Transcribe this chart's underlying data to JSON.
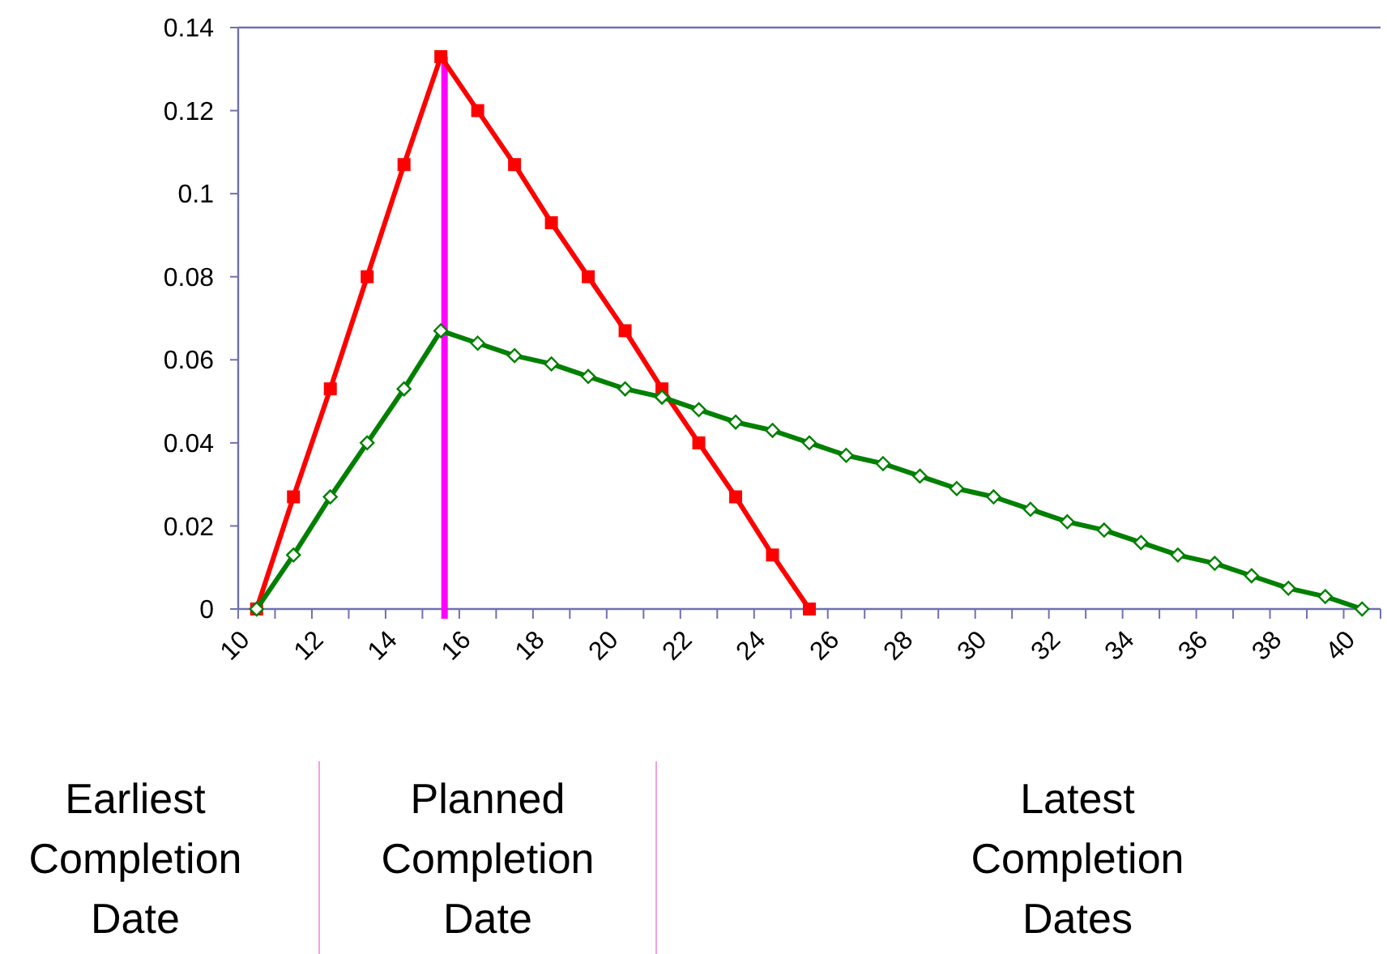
{
  "chart_data": {
    "type": "line",
    "xlim": [
      10,
      41
    ],
    "xticks": [
      10,
      {
        "value": 11,
        "label": null
      },
      12,
      {
        "value": 13,
        "label": null
      },
      14,
      {
        "value": 15,
        "label": null
      },
      16,
      {
        "value": 17,
        "label": null
      },
      18,
      {
        "value": 19,
        "label": null
      },
      20,
      {
        "value": 21,
        "label": null
      },
      22,
      {
        "value": 23,
        "label": null
      },
      24,
      {
        "value": 25,
        "label": null
      },
      26,
      {
        "value": 27,
        "label": null
      },
      28,
      {
        "value": 29,
        "label": null
      },
      30,
      {
        "value": 31,
        "label": null
      },
      32,
      {
        "value": 33,
        "label": null
      },
      34,
      {
        "value": 35,
        "label": null
      },
      36,
      {
        "value": 37,
        "label": null
      },
      38,
      {
        "value": 39,
        "label": null
      },
      40,
      {
        "value": 41,
        "label": null
      }
    ],
    "ylim": [
      0,
      0.14
    ],
    "yticks": [
      0,
      0.02,
      0.04,
      0.06,
      0.08,
      0.1,
      0.12,
      0.14
    ],
    "grid": false,
    "series": [
      {
        "color": "#ff0000",
        "marker": "square",
        "x": [
          10.5,
          11.5,
          12.5,
          13.5,
          14.5,
          15.5,
          16.5,
          17.5,
          18.5,
          19.5,
          20.5,
          21.5,
          22.5,
          23.5,
          24.5,
          25.5
        ],
        "values": [
          0,
          0.027,
          0.053,
          0.08,
          0.107,
          0.133,
          0.12,
          0.107,
          0.093,
          0.08,
          0.067,
          0.053,
          0.04,
          0.027,
          0.013,
          0
        ]
      },
      {
        "color": "#008000",
        "marker": "diamond",
        "x": [
          10.5,
          11.5,
          12.5,
          13.5,
          14.5,
          15.5,
          16.5,
          17.5,
          18.5,
          19.5,
          20.5,
          21.5,
          22.5,
          23.5,
          24.5,
          25.5,
          26.5,
          27.5,
          28.5,
          29.5,
          30.5,
          31.5,
          32.5,
          33.5,
          34.5,
          35.5,
          36.5,
          37.5,
          38.5,
          39.5,
          40.5
        ],
        "values": [
          0,
          0.013,
          0.027,
          0.04,
          0.053,
          0.067,
          0.064,
          0.061,
          0.059,
          0.056,
          0.053,
          0.051,
          0.048,
          0.045,
          0.043,
          0.04,
          0.037,
          0.035,
          0.032,
          0.029,
          0.027,
          0.024,
          0.021,
          0.019,
          0.016,
          0.013,
          0.011,
          0.008,
          0.005,
          0.003,
          0
        ]
      }
    ],
    "ref_lines": [
      {
        "axis": "x",
        "value": 15.6,
        "color": "#ff00ff"
      }
    ],
    "annotations": [
      "Earliest\nCompletion\nDate",
      "Planned\nCompletion\nDate",
      "Latest\nCompletion\nDates"
    ]
  }
}
